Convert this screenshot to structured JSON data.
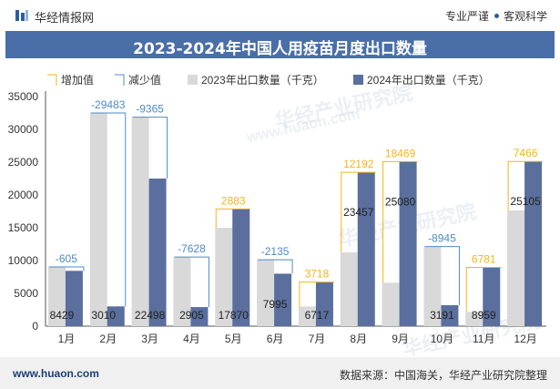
{
  "header": {
    "brand": "华经情报网",
    "slogan_left": "专业严谨",
    "slogan_right": "客观科学",
    "logo_icon": "huajing-logo-icon"
  },
  "footer": {
    "website": "www.huaon.com",
    "source": "数据来源：中国海关，华经产业研究院整理"
  },
  "watermarks": [
    "华经产业研究院",
    "www.huaon.com"
  ],
  "colors": {
    "increase": "#f2b619",
    "decrease": "#4e8ac9",
    "series_2023": "#d9d9d9",
    "series_2024": "#5a6f9d",
    "title_bar": "#4a6fa8"
  },
  "chart_data": {
    "type": "bar",
    "title": "2023-2024年中国人用疫苗月度出口数量",
    "categories": [
      "1月",
      "2月",
      "3月",
      "4月",
      "5月",
      "6月",
      "7月",
      "8月",
      "9月",
      "10月",
      "11月",
      "12月"
    ],
    "series": [
      {
        "name": "2023年出口数量（千克）",
        "values": [
          9034,
          32493,
          31863,
          10533,
          14987,
          10130,
          2999,
          11265,
          6611,
          12136,
          2178,
          17639
        ]
      },
      {
        "name": "2024年出口数量（千克）",
        "values": [
          8429,
          3010,
          22498,
          2905,
          17870,
          7995,
          6717,
          23457,
          25080,
          3191,
          8959,
          25105
        ]
      }
    ],
    "change": [
      "-605",
      "-29483",
      "-9365",
      "-7628",
      "2883",
      "-2135",
      "3718",
      "12192",
      "18469",
      "-8945",
      "6781",
      "7466"
    ],
    "legend": [
      "增加值",
      "减少值",
      "2023年出口数量（千克）",
      "2024年出口数量（千克）"
    ],
    "ylim": [
      0,
      35000
    ],
    "yticks": [
      0,
      5000,
      10000,
      15000,
      20000,
      25000,
      30000,
      35000
    ],
    "legend_position": "top-left"
  }
}
